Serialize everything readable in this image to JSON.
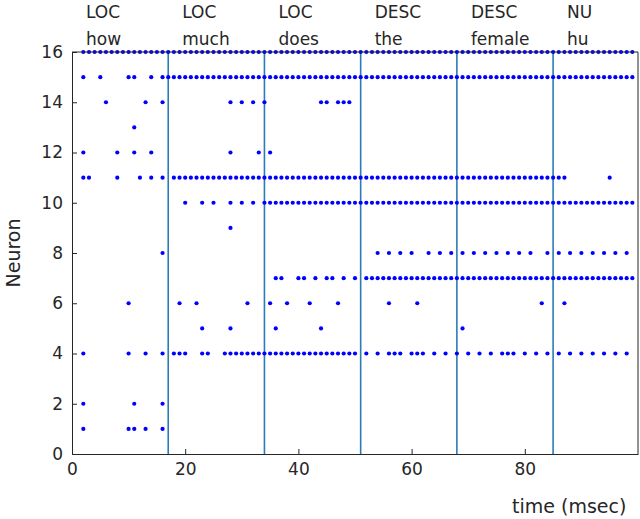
{
  "chart_data": {
    "type": "scatter",
    "xlabel": "time (msec)",
    "ylabel": "Neuron",
    "xlim": [
      0,
      100
    ],
    "ylim": [
      0,
      16
    ],
    "xticks": [
      0,
      20,
      40,
      60,
      80
    ],
    "yticks": [
      0,
      2,
      4,
      6,
      8,
      10,
      12,
      14,
      16
    ],
    "color": "#0000ff",
    "marker": "dot",
    "vlines": [
      17,
      34,
      51,
      68,
      85
    ],
    "segments": [
      {
        "x": 0,
        "class": "LOC",
        "word": "how"
      },
      {
        "x": 17,
        "class": "LOC",
        "word": "much"
      },
      {
        "x": 34,
        "class": "LOC",
        "word": "does"
      },
      {
        "x": 51,
        "class": "DESC",
        "word": "the"
      },
      {
        "x": 68,
        "class": "DESC",
        "word": "female"
      },
      {
        "x": 85,
        "class": "NU",
        "word": "hu"
      }
    ],
    "series": [
      {
        "neuron": 1,
        "x": [
          2,
          10,
          11,
          13,
          16
        ]
      },
      {
        "neuron": 2,
        "x": [
          2,
          11,
          16
        ]
      },
      {
        "neuron": 4,
        "x": [
          2,
          10,
          13,
          16,
          18,
          19,
          20,
          23,
          24,
          27,
          28,
          29,
          30,
          31,
          32,
          33,
          34,
          35,
          36,
          37,
          38,
          39,
          40,
          41,
          42,
          43,
          44,
          45,
          46,
          47,
          48,
          49,
          50,
          52,
          54,
          56,
          57,
          58,
          60,
          61,
          62,
          64,
          66,
          68,
          70,
          72,
          74,
          76,
          77,
          78,
          80,
          82,
          84,
          86,
          88,
          90,
          92,
          94,
          96,
          98
        ]
      },
      {
        "neuron": 5,
        "x": [
          23,
          28,
          36,
          44,
          69
        ]
      },
      {
        "neuron": 6,
        "x": [
          10,
          19,
          22,
          31,
          35,
          38,
          42,
          47,
          56,
          61,
          83,
          87
        ]
      },
      {
        "neuron": 7,
        "x": [
          36,
          37,
          40,
          41,
          43,
          45,
          46,
          48,
          50,
          52,
          53,
          54,
          55,
          56,
          57,
          58,
          59,
          60,
          61,
          62,
          63,
          64,
          65,
          66,
          67,
          68,
          69,
          70,
          71,
          72,
          73,
          74,
          75,
          76,
          77,
          78,
          79,
          80,
          81,
          82,
          83,
          84,
          85,
          86,
          87,
          88,
          89,
          90,
          91,
          92,
          93,
          94,
          95,
          96,
          97,
          98,
          99
        ]
      },
      {
        "neuron": 8,
        "x": [
          16,
          54,
          56,
          58,
          60,
          63,
          65,
          67,
          69,
          71,
          73,
          75,
          77,
          79,
          81,
          84,
          86,
          88,
          90,
          92,
          94,
          96,
          98
        ]
      },
      {
        "neuron": 9,
        "x": [
          28
        ]
      },
      {
        "neuron": 10,
        "x": [
          20,
          23,
          25,
          28,
          30,
          32,
          34,
          35,
          36,
          37,
          38,
          39,
          40,
          41,
          42,
          43,
          44,
          45,
          46,
          47,
          48,
          49,
          50,
          51,
          52,
          53,
          54,
          55,
          56,
          57,
          58,
          59,
          60,
          61,
          62,
          63,
          64,
          65,
          66,
          67,
          68,
          69,
          70,
          71,
          72,
          73,
          74,
          75,
          76,
          77,
          78,
          79,
          80,
          81,
          82,
          83,
          84,
          85,
          86,
          87,
          88,
          89,
          90,
          91,
          92,
          93,
          94,
          95,
          96,
          97,
          98,
          99
        ]
      },
      {
        "neuron": 11,
        "x": [
          2,
          3,
          8,
          12,
          14,
          16,
          18,
          19,
          20,
          21,
          22,
          23,
          24,
          25,
          26,
          27,
          28,
          29,
          30,
          31,
          32,
          33,
          34,
          35,
          36,
          37,
          38,
          39,
          40,
          41,
          42,
          43,
          44,
          45,
          46,
          47,
          48,
          49,
          50,
          51,
          52,
          53,
          54,
          55,
          56,
          57,
          58,
          59,
          60,
          61,
          62,
          63,
          64,
          65,
          66,
          67,
          68,
          69,
          70,
          71,
          72,
          73,
          74,
          75,
          76,
          77,
          78,
          79,
          80,
          81,
          82,
          83,
          84,
          85,
          86,
          87,
          95
        ]
      },
      {
        "neuron": 12,
        "x": [
          2,
          8,
          11,
          14,
          28,
          33,
          35
        ]
      },
      {
        "neuron": 13,
        "x": [
          11
        ]
      },
      {
        "neuron": 14,
        "x": [
          6,
          13,
          16,
          28,
          30,
          32,
          34,
          44,
          45,
          47,
          48,
          49
        ]
      },
      {
        "neuron": 15,
        "x": [
          2,
          5,
          10,
          11,
          14,
          16,
          17,
          18,
          19,
          20,
          21,
          22,
          23,
          24,
          25,
          26,
          27,
          28,
          29,
          30,
          31,
          32,
          33,
          34,
          35,
          36,
          37,
          38,
          39,
          40,
          41,
          42,
          43,
          44,
          45,
          46,
          47,
          48,
          49,
          50,
          51,
          52,
          53,
          54,
          55,
          56,
          57,
          58,
          59,
          60,
          61,
          62,
          63,
          64,
          65,
          66,
          67,
          68,
          69,
          70,
          71,
          72,
          73,
          74,
          75,
          76,
          77,
          78,
          79,
          80,
          81,
          82,
          83,
          84,
          85,
          86,
          87,
          88,
          89,
          90,
          91,
          92,
          93,
          94,
          95,
          96,
          97,
          98,
          99
        ]
      },
      {
        "neuron": 16,
        "x": [
          2,
          3,
          4,
          5,
          6,
          7,
          8,
          9,
          10,
          11,
          12,
          13,
          14,
          15,
          16,
          17,
          18,
          19,
          20,
          21,
          22,
          23,
          24,
          25,
          26,
          27,
          28,
          29,
          30,
          31,
          32,
          33,
          34,
          35,
          36,
          37,
          38,
          39,
          40,
          41,
          42,
          43,
          44,
          45,
          46,
          47,
          48,
          49,
          50,
          51,
          52,
          53,
          54,
          55,
          56,
          57,
          58,
          59,
          60,
          61,
          62,
          63,
          64,
          65,
          66,
          67,
          68,
          69,
          70,
          71,
          72,
          73,
          74,
          75,
          76,
          77,
          78,
          79,
          80,
          81,
          82,
          83,
          84,
          85,
          86,
          87,
          88,
          89,
          90,
          91,
          92,
          93,
          94,
          95,
          96,
          97,
          98,
          99
        ]
      }
    ]
  }
}
